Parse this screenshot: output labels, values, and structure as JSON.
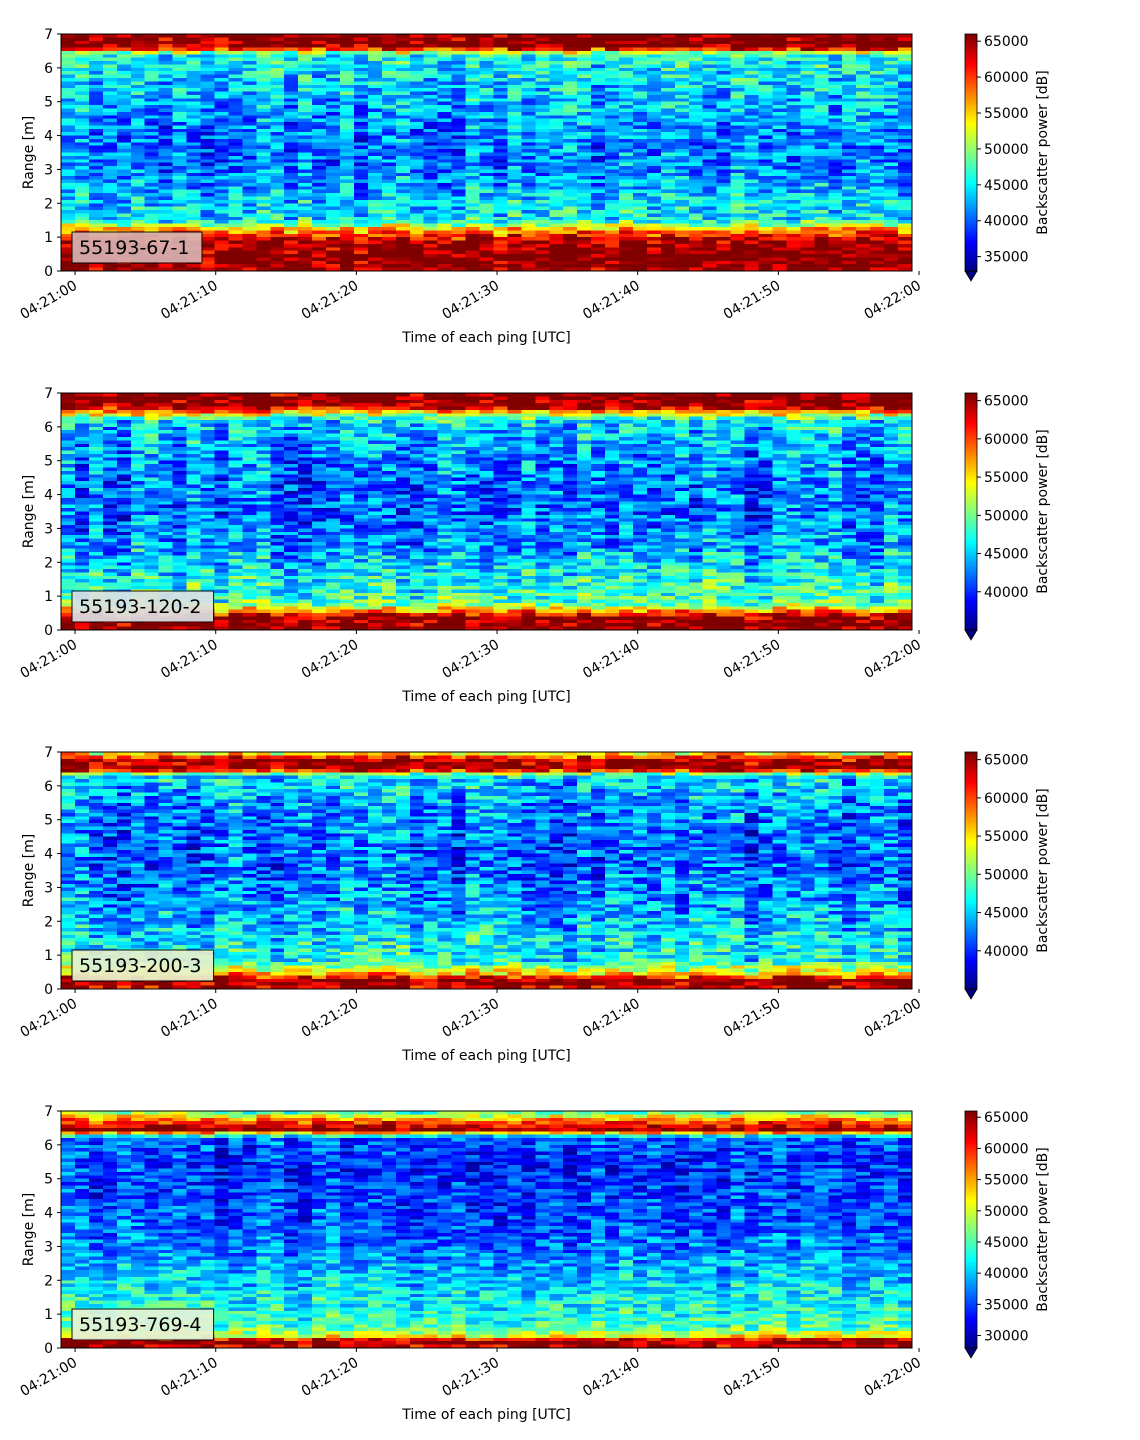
{
  "chart_data": {
    "type": "heatmap",
    "xlabel": "Time of each ping [UTC]",
    "ylabel": "Range [m]",
    "colorbar_label": "Backscatter power [dB]",
    "colormap": "jet",
    "x_range": [
      "04:21:00",
      "04:22:00"
    ],
    "x_ticks": [
      "04:21:00",
      "04:21:10",
      "04:21:20",
      "04:21:30",
      "04:21:40",
      "04:21:50",
      "04:22:00"
    ],
    "y_range": [
      0,
      7
    ],
    "y_ticks": [
      0,
      1,
      2,
      3,
      4,
      5,
      6,
      7
    ],
    "panels": [
      {
        "label": "55193-67-1",
        "label_bg": "#d8b2b2",
        "clim": [
          33000,
          66000
        ],
        "cbar_ticks": [
          35000,
          40000,
          45000,
          50000,
          55000,
          60000,
          65000
        ],
        "profile": [
          {
            "range": 0.0,
            "value": 65000
          },
          {
            "range": 0.2,
            "value": 66000
          },
          {
            "range": 0.5,
            "value": 66000
          },
          {
            "range": 0.9,
            "value": 64000
          },
          {
            "range": 1.2,
            "value": 57000
          },
          {
            "range": 1.5,
            "value": 45000
          },
          {
            "range": 2.0,
            "value": 44000
          },
          {
            "range": 3.0,
            "value": 41000
          },
          {
            "range": 4.0,
            "value": 41000
          },
          {
            "range": 5.0,
            "value": 43000
          },
          {
            "range": 6.0,
            "value": 45000
          },
          {
            "range": 6.4,
            "value": 46000
          },
          {
            "range": 6.6,
            "value": 66000
          },
          {
            "range": 7.0,
            "value": 66000
          }
        ]
      },
      {
        "label": "55193-120-2",
        "label_bg": "#dce0e4",
        "clim": [
          35000,
          66000
        ],
        "cbar_ticks": [
          40000,
          45000,
          50000,
          55000,
          60000,
          65000
        ],
        "profile": [
          {
            "range": 0.0,
            "value": 66000
          },
          {
            "range": 0.35,
            "value": 66000
          },
          {
            "range": 0.55,
            "value": 58000
          },
          {
            "range": 0.8,
            "value": 49000
          },
          {
            "range": 1.5,
            "value": 47000
          },
          {
            "range": 2.5,
            "value": 43500
          },
          {
            "range": 3.5,
            "value": 42000
          },
          {
            "range": 4.5,
            "value": 42500
          },
          {
            "range": 5.5,
            "value": 44000
          },
          {
            "range": 6.2,
            "value": 46000
          },
          {
            "range": 6.45,
            "value": 58000
          },
          {
            "range": 6.6,
            "value": 66000
          },
          {
            "range": 7.0,
            "value": 66000
          }
        ]
      },
      {
        "label": "55193-200-3",
        "label_bg": "#e8f0cc",
        "clim": [
          35000,
          66000
        ],
        "cbar_ticks": [
          40000,
          45000,
          50000,
          55000,
          60000,
          65000
        ],
        "profile": [
          {
            "range": 0.0,
            "value": 63000
          },
          {
            "range": 0.25,
            "value": 66000
          },
          {
            "range": 0.45,
            "value": 56000
          },
          {
            "range": 0.8,
            "value": 47000
          },
          {
            "range": 1.5,
            "value": 46000
          },
          {
            "range": 2.5,
            "value": 43500
          },
          {
            "range": 3.5,
            "value": 42000
          },
          {
            "range": 4.5,
            "value": 42000
          },
          {
            "range": 5.5,
            "value": 43500
          },
          {
            "range": 6.3,
            "value": 46000
          },
          {
            "range": 6.5,
            "value": 66000
          },
          {
            "range": 6.8,
            "value": 64000
          },
          {
            "range": 7.0,
            "value": 52000
          }
        ]
      },
      {
        "label": "55193-769-4",
        "label_bg": "#e4f2d8",
        "clim": [
          28000,
          66000
        ],
        "cbar_ticks": [
          30000,
          35000,
          40000,
          45000,
          50000,
          55000,
          60000,
          65000
        ],
        "profile": [
          {
            "range": 0.0,
            "value": 62000
          },
          {
            "range": 0.2,
            "value": 66000
          },
          {
            "range": 0.35,
            "value": 52000
          },
          {
            "range": 0.6,
            "value": 45000
          },
          {
            "range": 1.5,
            "value": 42000
          },
          {
            "range": 2.5,
            "value": 39000
          },
          {
            "range": 3.5,
            "value": 36000
          },
          {
            "range": 4.5,
            "value": 35000
          },
          {
            "range": 5.5,
            "value": 34500
          },
          {
            "range": 6.2,
            "value": 36000
          },
          {
            "range": 6.45,
            "value": 66000
          },
          {
            "range": 6.7,
            "value": 58000
          },
          {
            "range": 7.0,
            "value": 44000
          }
        ]
      }
    ]
  }
}
